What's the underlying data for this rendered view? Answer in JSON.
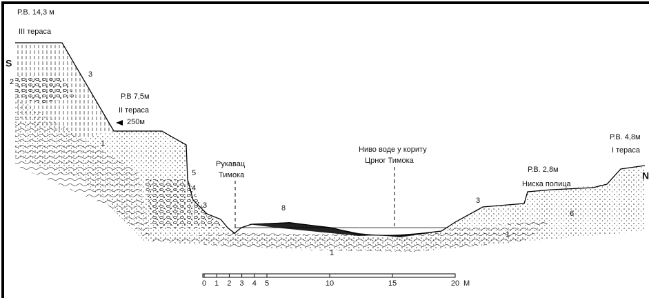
{
  "labels": [
    "Р.В. 14,3 м",
    "III тераса",
    "S",
    "2",
    "3",
    "Р.В 7,5м",
    "II тераса",
    "250м",
    "1",
    "5",
    "4",
    "3",
    "Рукавац",
    "Тимока",
    "8",
    "Ниво воде у кориту",
    "Црног Тимока",
    "1",
    "3",
    "Р.В. 2,8м",
    "Ниска полица",
    "6",
    "1",
    "Р.В. 4,8м",
    "I тераса",
    "N"
  ],
  "scale": {
    "ticks": [
      "0",
      "1",
      "2",
      "3",
      "4",
      "5",
      "10",
      "15",
      "20"
    ],
    "unit": "М"
  }
}
